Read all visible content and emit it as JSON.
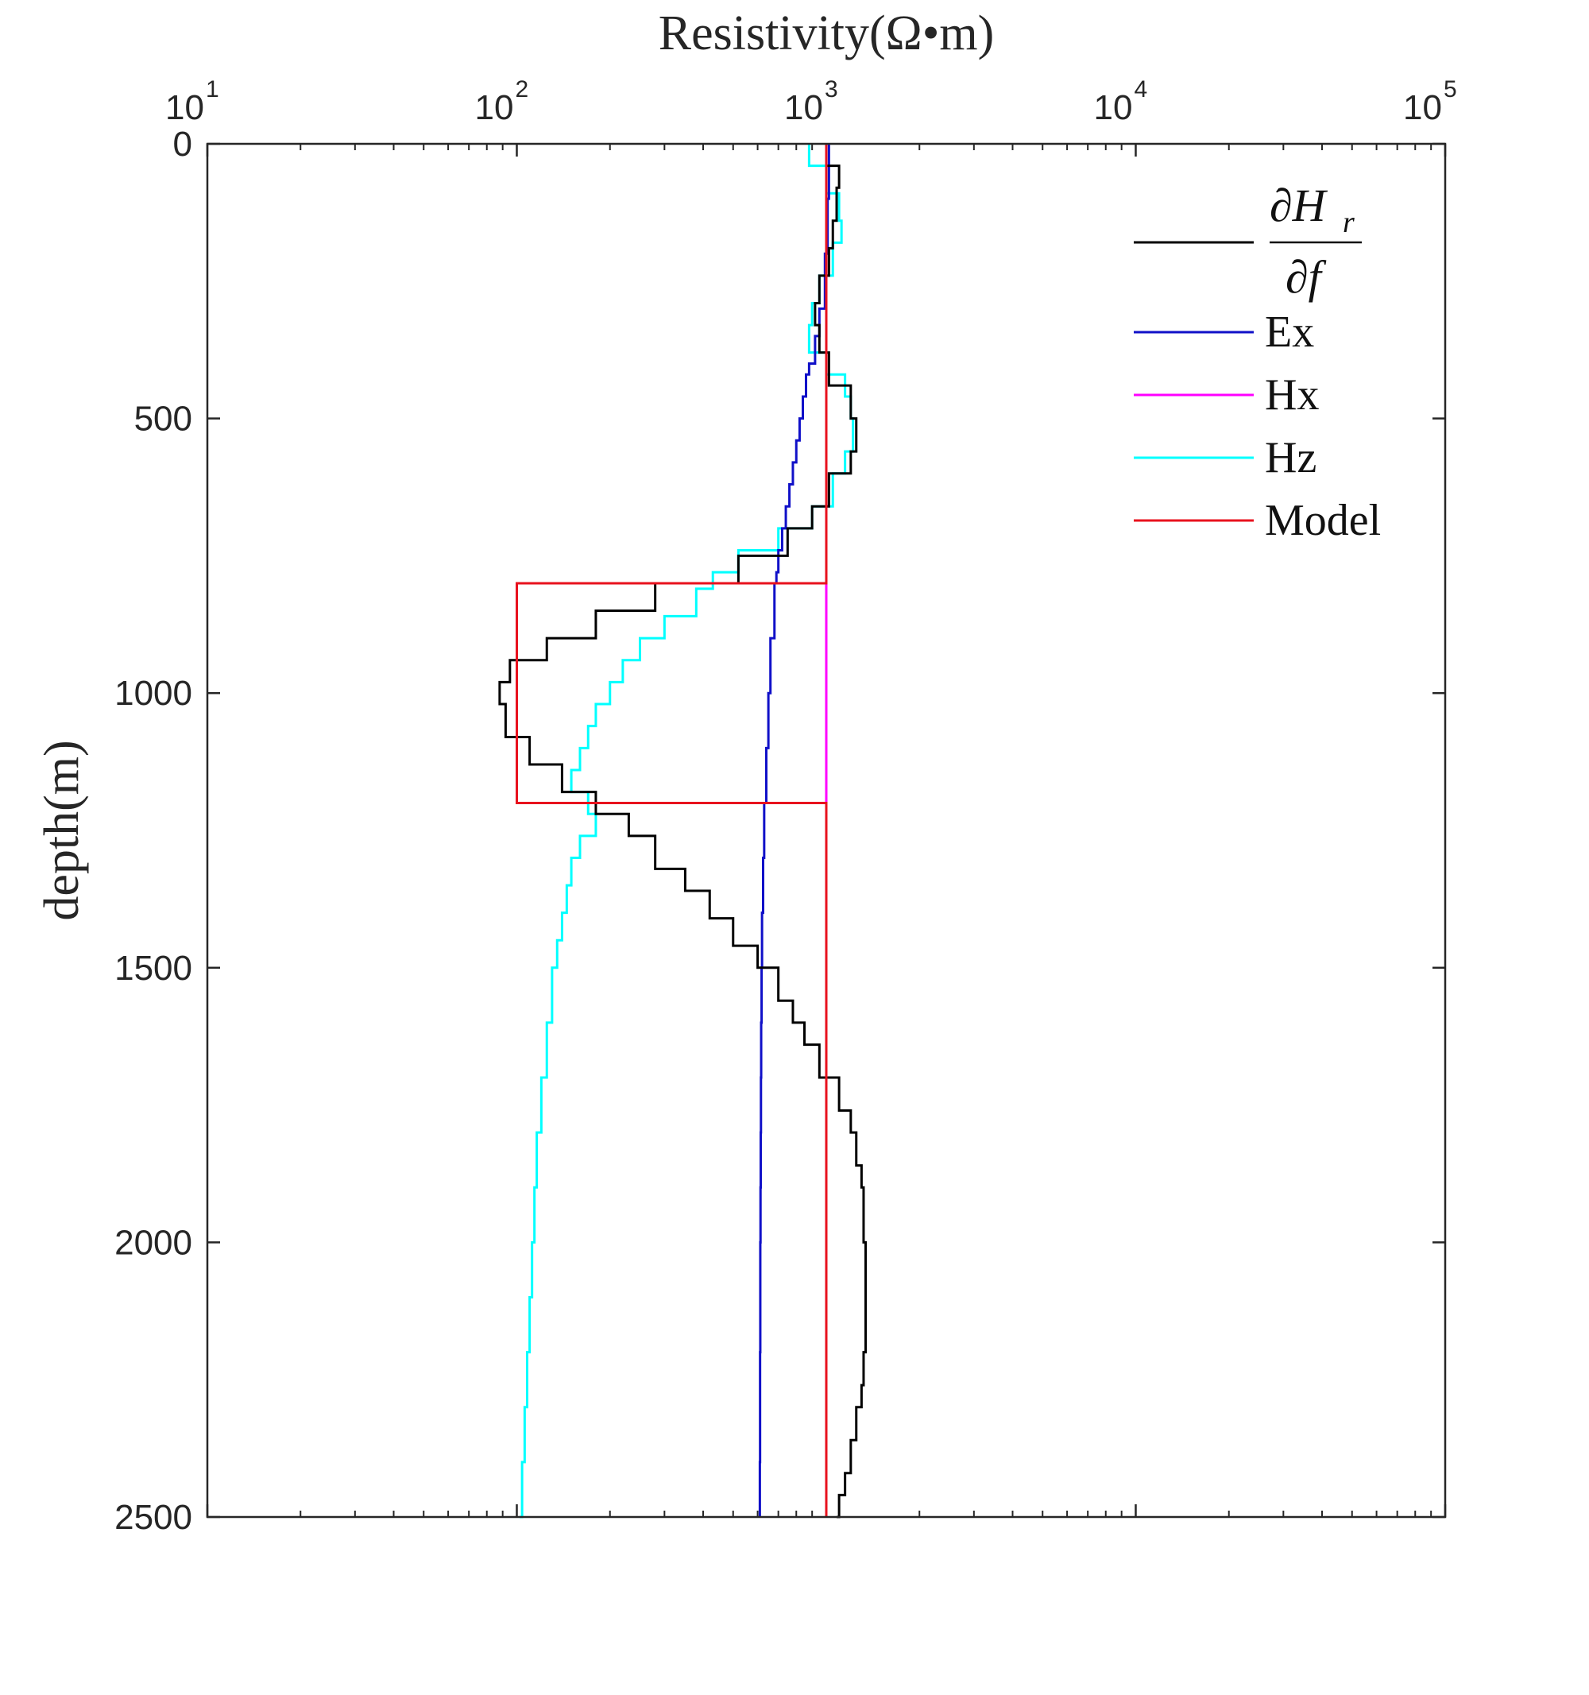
{
  "chart_data": {
    "type": "line",
    "title": "Resistivity(Ω•m)",
    "xlabel": "Resistivity(Ω•m)",
    "ylabel": "depth(m)",
    "xscale": "log",
    "xlim": [
      10,
      100000
    ],
    "ylim": [
      0,
      2500
    ],
    "y_reversed": true,
    "x_ticks": [
      {
        "base": "10",
        "exp": "1",
        "value": 10
      },
      {
        "base": "10",
        "exp": "2",
        "value": 100
      },
      {
        "base": "10",
        "exp": "3",
        "value": 1000
      },
      {
        "base": "10",
        "exp": "4",
        "value": 10000
      },
      {
        "base": "10",
        "exp": "5",
        "value": 100000
      }
    ],
    "y_ticks": [
      "0",
      "500",
      "1000",
      "1500",
      "2000",
      "2500"
    ],
    "legend": {
      "location": "top-right",
      "entries": [
        {
          "label": "∂Hr/∂f",
          "numerator": "∂H",
          "subscript": "r",
          "denominator": "∂f",
          "color": "#000000"
        },
        {
          "label": "Ex",
          "color": "#1010c8"
        },
        {
          "label": "Hx",
          "color": "#ff00ff"
        },
        {
          "label": "Hz",
          "color": "#00ffff"
        },
        {
          "label": "Model",
          "color": "#e8121e"
        }
      ]
    },
    "series": [
      {
        "name": "∂Hr/∂f",
        "color": "#000000",
        "step": true,
        "depths": [
          0,
          40,
          80,
          140,
          190,
          240,
          290,
          330,
          380,
          440,
          500,
          560,
          600,
          660,
          700,
          750,
          800,
          850,
          900,
          940,
          980,
          1020,
          1080,
          1130,
          1180,
          1220,
          1260,
          1320,
          1360,
          1410,
          1460,
          1500,
          1560,
          1600,
          1640,
          1700,
          1760,
          1800,
          1860,
          1900,
          2000,
          2100,
          2200,
          2260,
          2300,
          2360,
          2420,
          2460,
          2500
        ],
        "values": [
          1000,
          1100,
          1080,
          1050,
          1020,
          950,
          920,
          950,
          1020,
          1200,
          1250,
          1200,
          1020,
          900,
          750,
          520,
          280,
          180,
          125,
          95,
          88,
          92,
          110,
          140,
          180,
          230,
          280,
          350,
          420,
          500,
          600,
          700,
          780,
          850,
          950,
          1100,
          1200,
          1250,
          1300,
          1320,
          1340,
          1340,
          1320,
          1300,
          1250,
          1200,
          1150,
          1100,
          1080
        ]
      },
      {
        "name": "Ex",
        "color": "#1010c8",
        "step": true,
        "depths": [
          0,
          100,
          200,
          300,
          350,
          400,
          420,
          460,
          500,
          540,
          580,
          620,
          660,
          700,
          740,
          780,
          800,
          900,
          1000,
          1100,
          1200,
          1300,
          1400,
          1500,
          1600,
          1700,
          1800,
          1900,
          2000,
          2100,
          2200,
          2300,
          2400,
          2500
        ],
        "values": [
          1020,
          1010,
          990,
          950,
          920,
          880,
          860,
          840,
          820,
          800,
          780,
          760,
          740,
          720,
          700,
          690,
          680,
          660,
          650,
          640,
          630,
          625,
          620,
          618,
          616,
          615,
          614,
          613,
          612,
          612,
          611,
          611,
          610,
          610
        ]
      },
      {
        "name": "Hx",
        "color": "#ff00ff",
        "step": false,
        "depths": [
          0,
          2500
        ],
        "values": [
          1000,
          1000
        ]
      },
      {
        "name": "Hz",
        "color": "#00ffff",
        "step": true,
        "depths": [
          0,
          40,
          90,
          140,
          180,
          240,
          290,
          330,
          380,
          420,
          460,
          500,
          560,
          600,
          660,
          700,
          740,
          780,
          810,
          860,
          900,
          940,
          980,
          1020,
          1060,
          1100,
          1140,
          1180,
          1220,
          1260,
          1300,
          1350,
          1400,
          1450,
          1500,
          1600,
          1700,
          1800,
          1900,
          2000,
          2100,
          2200,
          2300,
          2400,
          2500
        ],
        "values": [
          880,
          1000,
          1100,
          1120,
          1050,
          950,
          900,
          880,
          1000,
          1150,
          1200,
          1220,
          1150,
          1050,
          900,
          700,
          520,
          430,
          380,
          300,
          250,
          220,
          200,
          180,
          170,
          160,
          150,
          170,
          180,
          160,
          150,
          145,
          140,
          135,
          130,
          125,
          120,
          116,
          114,
          112,
          110,
          108,
          106,
          104,
          102
        ]
      },
      {
        "name": "Model",
        "color": "#e8121e",
        "step": false,
        "depths": [
          0,
          800,
          800,
          1200,
          1200,
          2500
        ],
        "values": [
          1000,
          1000,
          100,
          100,
          1000,
          1000
        ]
      }
    ]
  }
}
